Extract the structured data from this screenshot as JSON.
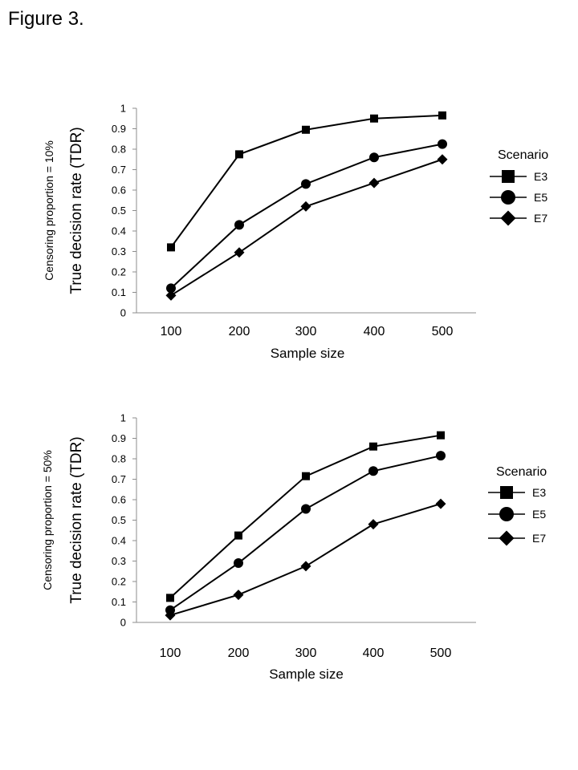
{
  "page": {
    "title": "Figure 3."
  },
  "chart_data": [
    {
      "type": "line",
      "title": "",
      "ylabel_outer": "Censoring proportion = 10%",
      "ylabel": "True decision rate (TDR)",
      "xlabel": "Sample size",
      "categories": [
        "100",
        "200",
        "300",
        "400",
        "500"
      ],
      "ylim": [
        0,
        1
      ],
      "yticks": [
        "0",
        "0.1",
        "0.2",
        "0.3",
        "0.4",
        "0.5",
        "0.6",
        "0.7",
        "0.8",
        "0.9",
        "1"
      ],
      "legend": {
        "title": "Scenario",
        "position": "right"
      },
      "series": [
        {
          "name": "E3",
          "marker": "square",
          "values": [
            0.32,
            0.775,
            0.895,
            0.95,
            0.965
          ]
        },
        {
          "name": "E5",
          "marker": "circle",
          "values": [
            0.12,
            0.43,
            0.63,
            0.76,
            0.825
          ]
        },
        {
          "name": "E7",
          "marker": "diamond",
          "values": [
            0.085,
            0.295,
            0.52,
            0.635,
            0.75
          ]
        }
      ]
    },
    {
      "type": "line",
      "title": "",
      "ylabel_outer": "Censoring proportion = 50%",
      "ylabel": "True decision rate (TDR)",
      "xlabel": "Sample size",
      "categories": [
        "100",
        "200",
        "300",
        "400",
        "500"
      ],
      "ylim": [
        0,
        1
      ],
      "yticks": [
        "0",
        "0.1",
        "0.2",
        "0.3",
        "0.4",
        "0.5",
        "0.6",
        "0.7",
        "0.8",
        "0.9",
        "1"
      ],
      "legend": {
        "title": "Scenario",
        "position": "right"
      },
      "series": [
        {
          "name": "E3",
          "marker": "square",
          "values": [
            0.12,
            0.425,
            0.715,
            0.86,
            0.915
          ]
        },
        {
          "name": "E5",
          "marker": "circle",
          "values": [
            0.06,
            0.29,
            0.555,
            0.74,
            0.815
          ]
        },
        {
          "name": "E7",
          "marker": "diamond",
          "values": [
            0.035,
            0.135,
            0.275,
            0.48,
            0.58
          ]
        }
      ]
    }
  ]
}
